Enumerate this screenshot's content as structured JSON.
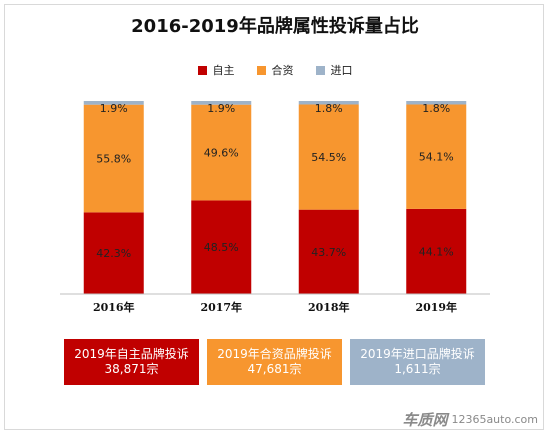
{
  "chart_data": {
    "type": "bar",
    "stacked": true,
    "title": "2016-2019年品牌属性投诉量占比",
    "categories": [
      "2016年",
      "2017年",
      "2018年",
      "2019年"
    ],
    "series": [
      {
        "name": "自主",
        "color": "#c00000",
        "values": [
          42.3,
          48.5,
          43.7,
          44.1
        ],
        "labels": [
          "42.3%",
          "48.5%",
          "43.7%",
          "44.1%"
        ]
      },
      {
        "name": "合资",
        "color": "#f7962f",
        "values": [
          55.8,
          49.6,
          54.5,
          54.1
        ],
        "labels": [
          "55.8%",
          "49.6%",
          "54.5%",
          "54.1%"
        ]
      },
      {
        "name": "进口",
        "color": "#9eb3c9",
        "values": [
          1.9,
          1.9,
          1.8,
          1.8
        ],
        "labels": [
          "1.9%",
          "1.9%",
          "1.8%",
          "1.8%"
        ]
      }
    ],
    "ylim": [
      0,
      100
    ],
    "grid": false,
    "legend_position": "top-center"
  },
  "summary_boxes": [
    {
      "line1": "2019年自主品牌投诉",
      "line2": "38,871宗",
      "color": "#c00000"
    },
    {
      "line1": "2019年合资品牌投诉",
      "line2": "47,681宗",
      "color": "#f7962f"
    },
    {
      "line1": "2019年进口品牌投诉",
      "line2": "1,611宗",
      "color": "#9eb3c9"
    }
  ],
  "watermark": {
    "logo": "车质网",
    "url": "12365auto.com"
  }
}
